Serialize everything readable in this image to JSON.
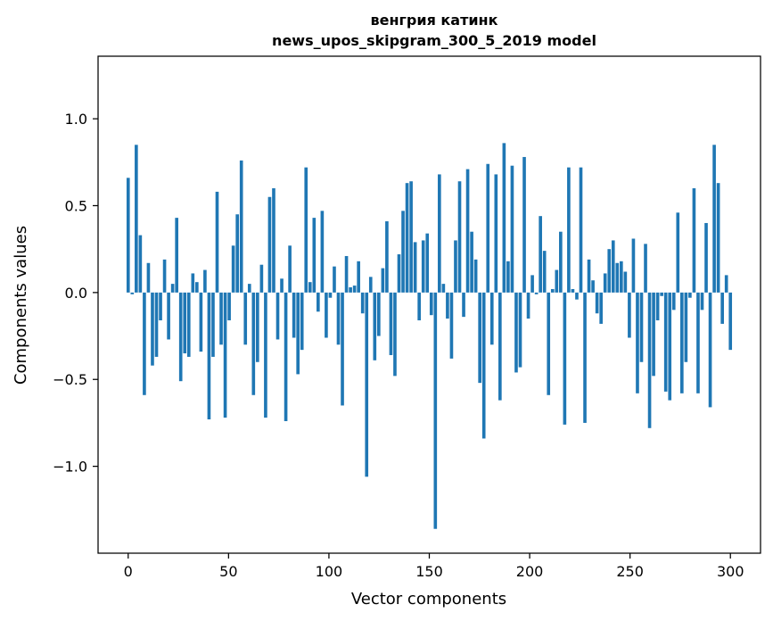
{
  "chart_data": {
    "type": "bar",
    "title_line1": "венгрия катинк",
    "title_line2": "news_upos_skipgram_300_5_2019 model",
    "xlabel": "Vector components",
    "ylabel": "Components values",
    "xlim": [
      -15,
      315
    ],
    "ylim": [
      -1.5,
      1.36
    ],
    "grid": false,
    "bar_color": "#1f77b4",
    "x_ticks": [
      {
        "value": 0,
        "label": "0"
      },
      {
        "value": 50,
        "label": "50"
      },
      {
        "value": 100,
        "label": "100"
      },
      {
        "value": 150,
        "label": "150"
      },
      {
        "value": 200,
        "label": "200"
      },
      {
        "value": 250,
        "label": "250"
      },
      {
        "value": 300,
        "label": "300"
      }
    ],
    "y_ticks": [
      {
        "value": -1.0,
        "label": "−1.0"
      },
      {
        "value": -0.5,
        "label": "−0.5"
      },
      {
        "value": 0.0,
        "label": "0.0"
      },
      {
        "value": 0.5,
        "label": "0.5"
      },
      {
        "value": 1.0,
        "label": "1.0"
      }
    ],
    "values": [
      0.66,
      -0.01,
      0.85,
      0.33,
      -0.59,
      0.17,
      -0.42,
      -0.37,
      -0.16,
      0.19,
      -0.27,
      0.05,
      0.43,
      -0.51,
      -0.35,
      -0.37,
      0.11,
      0.06,
      -0.34,
      0.13,
      -0.73,
      -0.37,
      0.58,
      -0.3,
      -0.72,
      -0.16,
      0.27,
      0.45,
      0.76,
      -0.3,
      0.05,
      -0.59,
      -0.4,
      0.16,
      -0.72,
      0.55,
      0.6,
      -0.27,
      0.08,
      -0.74,
      0.27,
      -0.26,
      -0.47,
      -0.33,
      0.72,
      0.06,
      0.43,
      -0.11,
      0.47,
      -0.26,
      -0.03,
      0.15,
      -0.3,
      -0.65,
      0.21,
      0.03,
      0.04,
      0.18,
      -0.12,
      -1.06,
      0.09,
      -0.39,
      -0.25,
      0.14,
      0.41,
      -0.36,
      -0.48,
      0.22,
      0.47,
      0.63,
      0.64,
      0.29,
      -0.16,
      0.3,
      0.34,
      -0.13,
      -1.36,
      0.68,
      0.05,
      -0.15,
      -0.38,
      0.3,
      0.64,
      -0.14,
      0.71,
      0.35,
      0.19,
      -0.52,
      -0.84,
      0.74,
      -0.3,
      0.68,
      -0.62,
      0.86,
      0.18,
      0.73,
      -0.46,
      -0.43,
      0.78,
      -0.15,
      0.1,
      -0.01,
      0.44,
      0.24,
      -0.59,
      0.02,
      0.13,
      0.35,
      -0.76,
      0.72,
      0.02,
      -0.04,
      0.72,
      -0.75,
      0.19,
      0.07,
      -0.12,
      -0.18,
      0.11,
      0.25,
      0.3,
      0.17,
      0.18,
      0.12,
      -0.26,
      0.31,
      -0.58,
      -0.4,
      0.28,
      -0.78,
      -0.48,
      -0.16,
      -0.02,
      -0.57,
      -0.62,
      -0.1,
      0.46,
      -0.58,
      -0.4,
      -0.03,
      0.6,
      -0.58,
      -0.1,
      0.4,
      -0.66,
      0.85,
      0.63,
      -0.18,
      0.1,
      -0.33
    ]
  }
}
